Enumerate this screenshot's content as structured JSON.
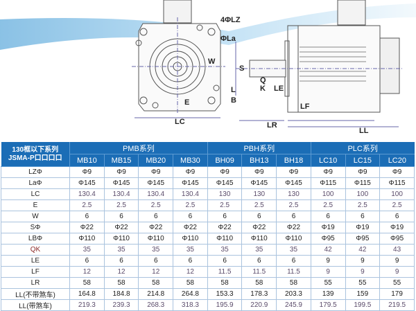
{
  "drawing": {
    "labels": [
      "4ΦLZ",
      "ΦLa",
      "W",
      "E",
      "LC",
      "S",
      "Q",
      "K",
      "LE",
      "L",
      "B",
      "LF",
      "LR",
      "LL"
    ]
  },
  "table": {
    "title_line1": "130框以下系列",
    "title_line2": "JSMA-P口口口口",
    "groups": [
      {
        "name": "PMB系列",
        "models": [
          "MB10",
          "MB15",
          "MB20",
          "MB30"
        ]
      },
      {
        "name": "PBH系列",
        "models": [
          "BH09",
          "BH13",
          "BH18"
        ]
      },
      {
        "name": "PLC系列",
        "models": [
          "LC10",
          "LC15",
          "LC20"
        ]
      }
    ],
    "rows": [
      {
        "label": "LZΦ",
        "values": [
          "Φ9",
          "Φ9",
          "Φ9",
          "Φ9",
          "Φ9",
          "Φ9",
          "Φ9",
          "Φ9",
          "Φ9",
          "Φ9"
        ]
      },
      {
        "label": "LaΦ",
        "values": [
          "Φ145",
          "Φ145",
          "Φ145",
          "Φ145",
          "Φ145",
          "Φ145",
          "Φ145",
          "Φ115",
          "Φ115",
          "Φ115"
        ]
      },
      {
        "label": "LC",
        "values": [
          "130.4",
          "130.4",
          "130.4",
          "130.4",
          "130",
          "130",
          "130",
          "100",
          "100",
          "100"
        ]
      },
      {
        "label": "E",
        "values": [
          "2.5",
          "2.5",
          "2.5",
          "2.5",
          "2.5",
          "2.5",
          "2.5",
          "2.5",
          "2.5",
          "2.5"
        ]
      },
      {
        "label": "W",
        "values": [
          "6",
          "6",
          "6",
          "6",
          "6",
          "6",
          "6",
          "6",
          "6",
          "6"
        ]
      },
      {
        "label": "SΦ",
        "values": [
          "Φ22",
          "Φ22",
          "Φ22",
          "Φ22",
          "Φ22",
          "Φ22",
          "Φ22",
          "Φ19",
          "Φ19",
          "Φ19"
        ]
      },
      {
        "label": "LBΦ",
        "values": [
          "Φ110",
          "Φ110",
          "Φ110",
          "Φ110",
          "Φ110",
          "Φ110",
          "Φ110",
          "Φ95",
          "Φ95",
          "Φ95"
        ]
      },
      {
        "label": "QK",
        "values": [
          "35",
          "35",
          "35",
          "35",
          "35",
          "35",
          "35",
          "42",
          "42",
          "43"
        ]
      },
      {
        "label": "LE",
        "values": [
          "6",
          "6",
          "6",
          "6",
          "6",
          "6",
          "6",
          "9",
          "9",
          "9"
        ]
      },
      {
        "label": "LF",
        "values": [
          "12",
          "12",
          "12",
          "12",
          "11.5",
          "11.5",
          "11.5",
          "9",
          "9",
          "9"
        ]
      },
      {
        "label": "LR",
        "values": [
          "58",
          "58",
          "58",
          "58",
          "58",
          "58",
          "58",
          "55",
          "55",
          "55"
        ]
      },
      {
        "label": "LL(不带煞车)",
        "values": [
          "164.8",
          "184.8",
          "214.8",
          "264.8",
          "153.3",
          "178.3",
          "203.3",
          "139",
          "159",
          "179"
        ]
      },
      {
        "label": "LL(带煞车)",
        "values": [
          "219.3",
          "239.3",
          "268.3",
          "318.3",
          "195.9",
          "220.9",
          "245.9",
          "179.5",
          "199.5",
          "219.5"
        ]
      }
    ]
  },
  "colors": {
    "header_blue": "#1b6db6",
    "grid": "#aac3de",
    "qk_label": "#8b2a2a"
  }
}
